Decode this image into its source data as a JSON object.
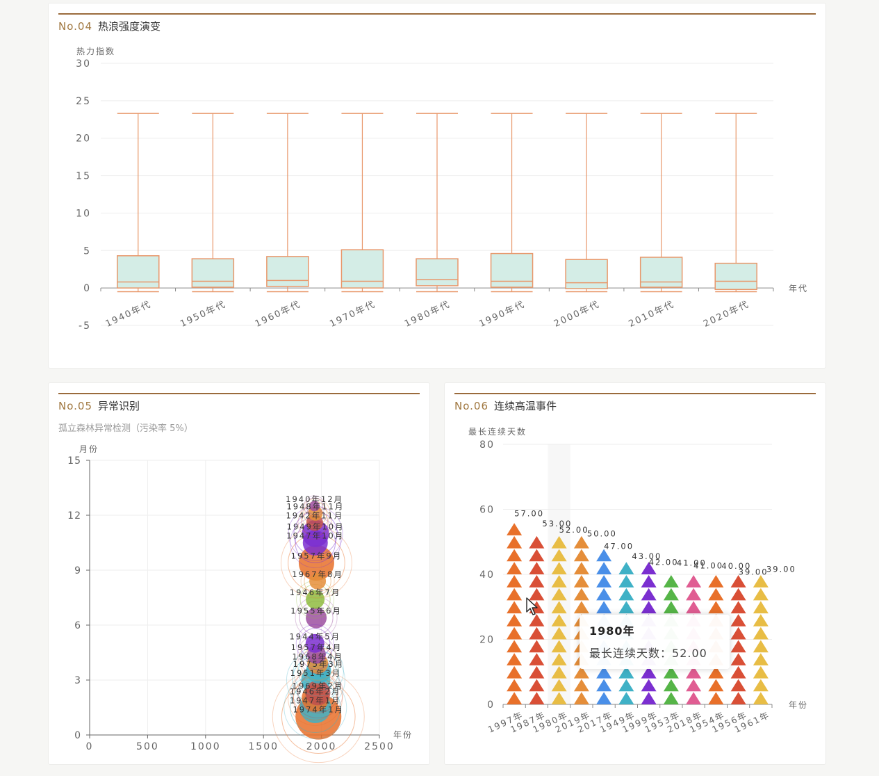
{
  "panels": {
    "p4": {
      "no": "No.04",
      "title": "热浪强度演变"
    },
    "p5": {
      "no": "No.05",
      "title": "异常识别",
      "subtitle": "孤立森林异常检测（污染率 5%）"
    },
    "p6": {
      "no": "No.06",
      "title": "连续高温事件"
    }
  },
  "tooltip": {
    "title": "1980年",
    "label": "最长连续天数：",
    "value": "52.00"
  },
  "chart_data": [
    {
      "type": "boxplot",
      "ylabel": "热力指数",
      "xlabel": "年代",
      "ylim": [
        -5,
        30
      ],
      "yticks": [
        -5,
        0,
        5,
        10,
        15,
        20,
        25,
        30
      ],
      "grid": true,
      "categories": [
        "1940年代",
        "1950年代",
        "1960年代",
        "1970年代",
        "1980年代",
        "1990年代",
        "2000年代",
        "2010年代",
        "2020年代"
      ],
      "boxes": [
        {
          "min": -0.5,
          "q1": 0,
          "median": 0.8,
          "q3": 4.3,
          "max": 23.3
        },
        {
          "min": -0.5,
          "q1": 0.1,
          "median": 0.9,
          "q3": 3.9,
          "max": 23.3
        },
        {
          "min": -0.5,
          "q1": 0.2,
          "median": 1.0,
          "q3": 4.2,
          "max": 23.3
        },
        {
          "min": -0.5,
          "q1": 0,
          "median": 0.9,
          "q3": 5.1,
          "max": 23.3
        },
        {
          "min": -0.5,
          "q1": 0.3,
          "median": 1.1,
          "q3": 3.9,
          "max": 23.3
        },
        {
          "min": -0.5,
          "q1": 0.1,
          "median": 0.9,
          "q3": 4.6,
          "max": 23.3
        },
        {
          "min": -0.5,
          "q1": -0.1,
          "median": 0.7,
          "q3": 3.8,
          "max": 23.3
        },
        {
          "min": -0.5,
          "q1": 0.1,
          "median": 0.8,
          "q3": 4.1,
          "max": 23.3
        },
        {
          "min": -0.5,
          "q1": -0.2,
          "median": 0.9,
          "q3": 3.3,
          "max": 23.3
        }
      ]
    },
    {
      "type": "scatter",
      "ylabel": "月份",
      "xlabel": "年份",
      "xlim": [
        0,
        2500
      ],
      "xticks": [
        0,
        500,
        1000,
        1500,
        2000,
        2500
      ],
      "ylim": [
        0,
        15
      ],
      "yticks": [
        0,
        3,
        6,
        9,
        12,
        15
      ],
      "grid": true,
      "points": [
        {
          "x": 1974,
          "y": 1,
          "label": "1974年1月",
          "size": 44,
          "color": "#e8702a"
        },
        {
          "x": 1947,
          "y": 1.5,
          "label": "1947年1月",
          "size": 30,
          "color": "#3fb1c6"
        },
        {
          "x": 1946,
          "y": 2,
          "label": "1946年2月",
          "size": 26,
          "color": "#e8702a"
        },
        {
          "x": 1969,
          "y": 2.3,
          "label": "1969年2月",
          "size": 24,
          "color": "#c0504d"
        },
        {
          "x": 1951,
          "y": 3,
          "label": "1951年3月",
          "size": 28,
          "color": "#3fb1c6"
        },
        {
          "x": 1975,
          "y": 3.5,
          "label": "1975年3月",
          "size": 24,
          "color": "#3fb1c6"
        },
        {
          "x": 1968,
          "y": 3.9,
          "label": "1968年4月",
          "size": 20,
          "color": "#e58e3a"
        },
        {
          "x": 1957,
          "y": 4.4,
          "label": "1957年4月",
          "size": 18,
          "color": "#9c4fa0"
        },
        {
          "x": 1944,
          "y": 5,
          "label": "1944年5月",
          "size": 18,
          "color": "#7b2fd0"
        },
        {
          "x": 1955,
          "y": 6.4,
          "label": "1955年6月",
          "size": 20,
          "color": "#9c4fa0"
        },
        {
          "x": 1946,
          "y": 7.4,
          "label": "1946年7月",
          "size": 18,
          "color": "#8fbc3f"
        },
        {
          "x": 1967,
          "y": 8.4,
          "label": "1967年8月",
          "size": 16,
          "color": "#e58e3a"
        },
        {
          "x": 1957,
          "y": 9.4,
          "label": "1957年9月",
          "size": 34,
          "color": "#e8702a"
        },
        {
          "x": 1947,
          "y": 10.5,
          "label": "1947年10月",
          "size": 24,
          "color": "#7b2fd0"
        },
        {
          "x": 1949,
          "y": 11,
          "label": "1949年10月",
          "size": 26,
          "color": "#7b2fd0"
        },
        {
          "x": 1942,
          "y": 11.6,
          "label": "1942年11月",
          "size": 16,
          "color": "#c0504d"
        },
        {
          "x": 1948,
          "y": 12.1,
          "label": "1948年11月",
          "size": 14,
          "color": "#e58e3a"
        },
        {
          "x": 1940,
          "y": 12.5,
          "label": "1940年12月",
          "size": 10,
          "color": "#9c4fa0"
        }
      ]
    },
    {
      "type": "pictorialBar",
      "ylabel": "最长连续天数",
      "xlabel": "年份",
      "ylim": [
        0,
        80
      ],
      "yticks": [
        0,
        20,
        40,
        60,
        80
      ],
      "grid": true,
      "categories": [
        "1997年",
        "1987年",
        "1980年",
        "2019年",
        "2017年",
        "1949年",
        "1999年",
        "1953年",
        "2018年",
        "1954年",
        "1956年",
        "1961年"
      ],
      "values": [
        57,
        53,
        52,
        50,
        47,
        43,
        42,
        41,
        41,
        40,
        39,
        39
      ],
      "value_labels": [
        "57.00",
        "53.00",
        "52.00",
        "50.00",
        "47.00",
        "43.00",
        "42.00",
        "41.00",
        "41.00",
        "40.00",
        "39.00",
        "39.00"
      ],
      "colors": [
        "#e8702a",
        "#d94f36",
        "#e8bd45",
        "#e58e3a",
        "#4a8fe8",
        "#3fb1c6",
        "#7b2fd0",
        "#56b548",
        "#e05d92",
        "#e8702a",
        "#d94f36",
        "#e8bd45"
      ],
      "highlight": "1980年"
    }
  ]
}
